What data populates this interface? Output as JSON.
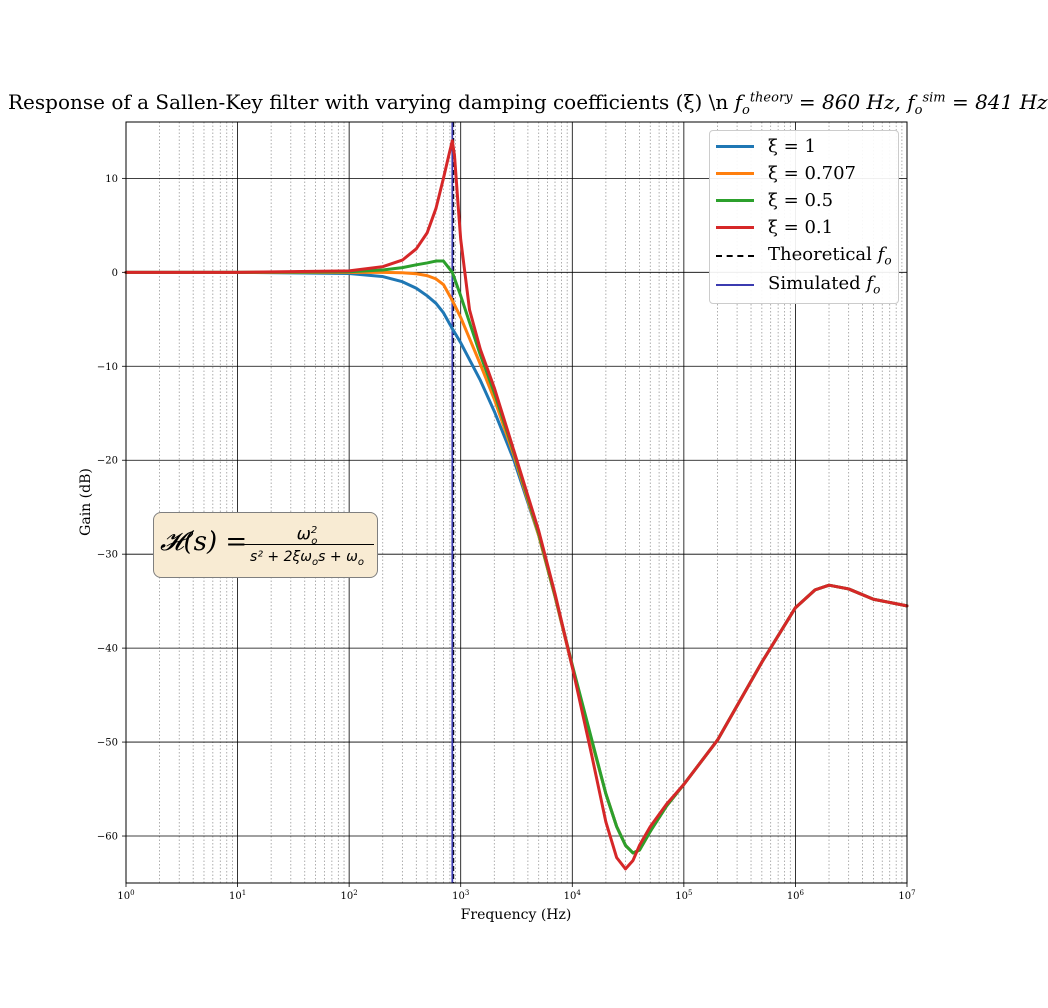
{
  "chart_data": {
    "type": "line",
    "title_parts": {
      "prefix": "Response of a Sallen-Key filter with varying damping coefficients (ξ) \\n ",
      "theory_sym": "f",
      "theory_sub": "o",
      "theory_sup": "theory",
      "theory_value": " = 860 Hz, ",
      "sim_sym": "f",
      "sim_sub": "o",
      "sim_sup": "sim",
      "sim_value": " = 841 Hz"
    },
    "xlabel": "Frequency (Hz)",
    "ylabel": "Gain (dB)",
    "xscale": "log",
    "xlim": [
      1,
      10000000
    ],
    "ylim": [
      -65,
      16
    ],
    "grid": "major and minor",
    "legend_position": "top-right",
    "x_ticks": [
      {
        "base": "10",
        "exp": "0"
      },
      {
        "base": "10",
        "exp": "1"
      },
      {
        "base": "10",
        "exp": "2"
      },
      {
        "base": "10",
        "exp": "3"
      },
      {
        "base": "10",
        "exp": "4"
      },
      {
        "base": "10",
        "exp": "5"
      },
      {
        "base": "10",
        "exp": "6"
      },
      {
        "base": "10",
        "exp": "7"
      }
    ],
    "y_ticks": [
      "10",
      "0",
      "−10",
      "−20",
      "−30",
      "−40",
      "−50",
      "−60"
    ],
    "y_tick_values": [
      10,
      0,
      -10,
      -20,
      -30,
      -40,
      -50,
      -60
    ],
    "theoretical_fo": 860,
    "simulated_fo": 841,
    "series": [
      {
        "name": "ξ = 1",
        "color": "#1f77b4",
        "x": [
          1,
          10,
          100,
          200,
          300,
          400,
          500,
          600,
          700,
          841,
          1000,
          1500,
          2000,
          3000,
          5000,
          7000,
          10000,
          15000,
          20000,
          25000,
          30000,
          35000,
          40000,
          50000,
          70000,
          100000,
          200000,
          500000,
          1000000,
          1500000,
          2000000,
          3000000,
          5000000,
          10000000
        ],
        "y": [
          0,
          0,
          -0.12,
          -0.45,
          -1.0,
          -1.7,
          -2.5,
          -3.3,
          -4.3,
          -6.0,
          -7.5,
          -11.5,
          -14.8,
          -20.0,
          -28.0,
          -34.5,
          -42.0,
          -50.0,
          -55.5,
          -59.0,
          -61.0,
          -61.8,
          -61.5,
          -59.5,
          -56.8,
          -54.5,
          -49.8,
          -41.5,
          -35.7,
          -33.8,
          -33.3,
          -33.7,
          -34.8,
          -35.5
        ]
      },
      {
        "name": "ξ = 0.707",
        "color": "#ff7f0e",
        "x": [
          1,
          10,
          100,
          200,
          300,
          400,
          500,
          600,
          700,
          841,
          1000,
          1500,
          2000,
          3000,
          5000,
          7000,
          10000,
          15000,
          20000,
          25000,
          30000,
          35000,
          40000,
          50000,
          70000,
          100000,
          200000,
          500000,
          1000000,
          1500000,
          2000000,
          3000000,
          5000000,
          10000000
        ],
        "y": [
          0,
          0,
          0,
          0,
          -0.05,
          -0.15,
          -0.35,
          -0.7,
          -1.3,
          -3.0,
          -4.8,
          -9.8,
          -13.5,
          -19.5,
          -28.0,
          -34.5,
          -42.0,
          -50.0,
          -55.5,
          -59.0,
          -61.0,
          -61.8,
          -61.5,
          -59.5,
          -56.8,
          -54.5,
          -49.8,
          -41.5,
          -35.7,
          -33.8,
          -33.3,
          -33.7,
          -34.8,
          -35.5
        ]
      },
      {
        "name": "ξ = 0.5",
        "color": "#2ca02c",
        "x": [
          1,
          10,
          100,
          200,
          300,
          400,
          500,
          600,
          700,
          841,
          1000,
          1500,
          2000,
          3000,
          5000,
          7000,
          10000,
          15000,
          20000,
          25000,
          30000,
          35000,
          40000,
          50000,
          70000,
          100000,
          200000,
          500000,
          1000000,
          1500000,
          2000000,
          3000000,
          5000000,
          10000000
        ],
        "y": [
          0,
          0,
          0.06,
          0.25,
          0.5,
          0.8,
          1.0,
          1.2,
          1.2,
          0.0,
          -2.5,
          -8.8,
          -12.8,
          -19.2,
          -27.8,
          -34.4,
          -41.8,
          -49.8,
          -55.5,
          -59.0,
          -61.0,
          -61.8,
          -61.5,
          -59.5,
          -56.8,
          -54.5,
          -49.8,
          -41.5,
          -35.7,
          -33.8,
          -33.3,
          -33.7,
          -34.8,
          -35.5
        ]
      },
      {
        "name": "ξ = 0.1",
        "color": "#d62728",
        "x": [
          1,
          10,
          100,
          200,
          300,
          400,
          500,
          600,
          700,
          780,
          841,
          880,
          950,
          1000,
          1200,
          1500,
          2000,
          3000,
          5000,
          7000,
          10000,
          15000,
          20000,
          25000,
          30000,
          35000,
          40000,
          50000,
          70000,
          100000,
          200000,
          500000,
          1000000,
          1500000,
          2000000,
          3000000,
          5000000,
          10000000
        ],
        "y": [
          0,
          0,
          0.15,
          0.6,
          1.3,
          2.5,
          4.2,
          6.8,
          10.0,
          12.4,
          14.0,
          12.4,
          7.0,
          3.5,
          -4.0,
          -8.2,
          -12.3,
          -19.0,
          -27.5,
          -34.2,
          -42.0,
          -51.5,
          -58.5,
          -62.3,
          -63.5,
          -62.6,
          -61.0,
          -59.0,
          -56.6,
          -54.5,
          -49.8,
          -41.5,
          -35.7,
          -33.8,
          -33.3,
          -33.7,
          -34.8,
          -35.5
        ]
      }
    ],
    "reference_lines": [
      {
        "name": "Theoretical",
        "sym": "f",
        "sub": "o",
        "x": 860,
        "style": "dashed",
        "color": "#000000"
      },
      {
        "name": "Simulated",
        "sym": "f",
        "sub": "o",
        "x": 841,
        "style": "solid",
        "color": "#3b3bb0"
      }
    ]
  },
  "formula": {
    "lhs": "𝓗(s) =",
    "num_base": "ω",
    "num_sup": "2",
    "num_sub": "o",
    "den": "s² + 2ξω",
    "den_sub1": "o",
    "den_mid": "s + ω",
    "den_sub2": "o"
  },
  "colors": {
    "formula_box": "#f8ebd3"
  }
}
